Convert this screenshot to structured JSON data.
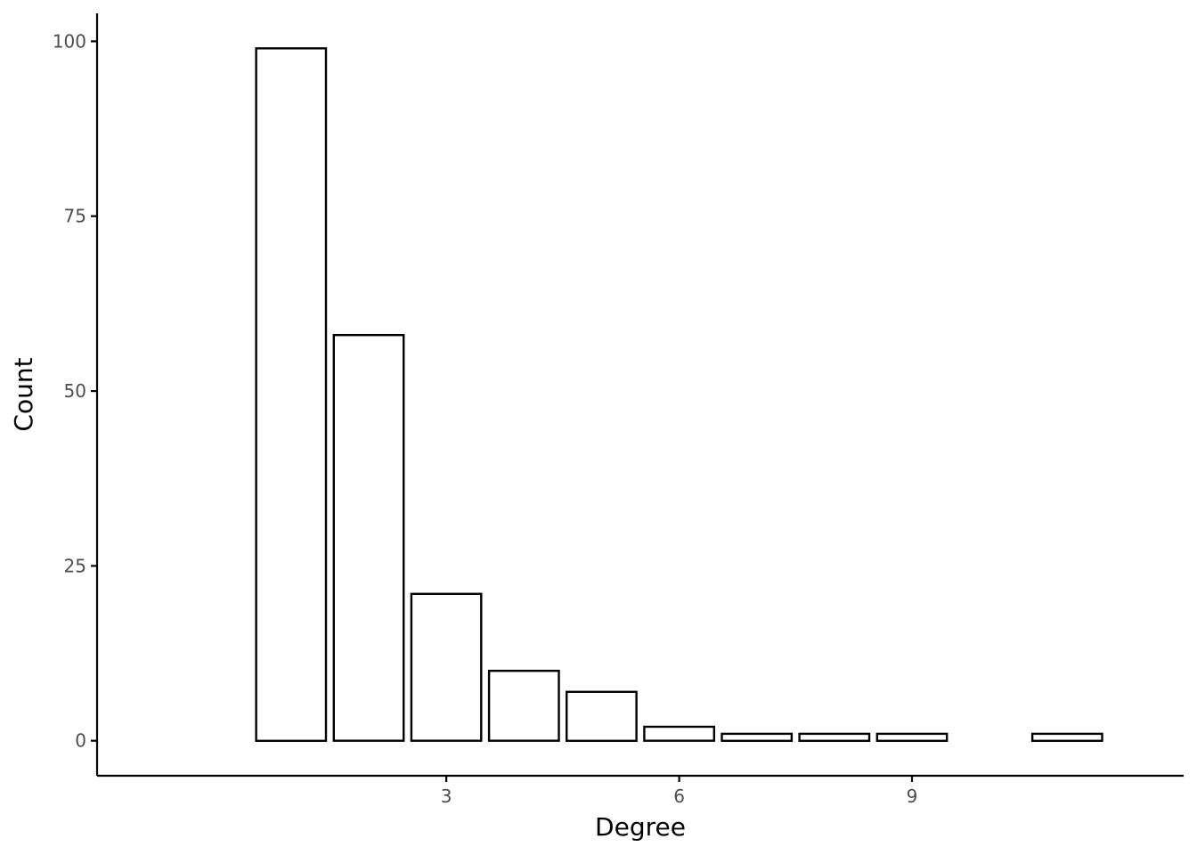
{
  "chart_data": {
    "type": "bar",
    "xlabel": "Degree",
    "ylabel": "Count",
    "x": [
      1,
      2,
      3,
      4,
      5,
      6,
      7,
      8,
      9,
      11
    ],
    "values": [
      99,
      58,
      21,
      10,
      7,
      2,
      1,
      1,
      1,
      1
    ],
    "xlim": [
      -1.5,
      12.5
    ],
    "ylim": [
      -5,
      104
    ],
    "x_ticks": [
      3,
      6,
      9
    ],
    "y_ticks": [
      0,
      25,
      50,
      75,
      100
    ],
    "bar_width": 0.9,
    "grid": false,
    "legend": "none",
    "colors": {
      "bar_fill": "#ffffff",
      "bar_stroke": "#000000",
      "axis": "#000000",
      "tick_text": "#4d4d4d"
    }
  }
}
